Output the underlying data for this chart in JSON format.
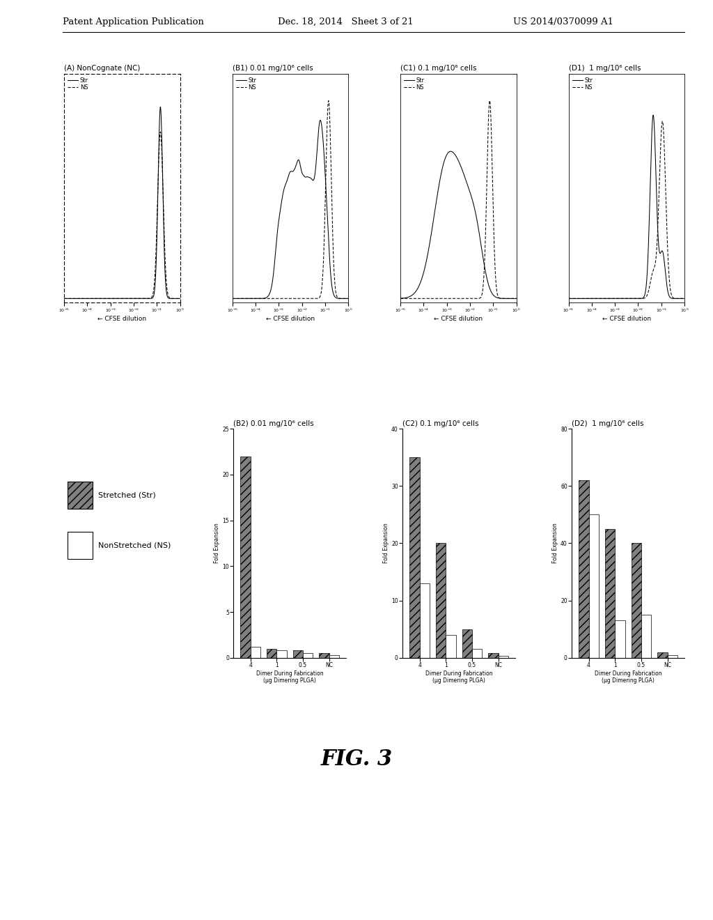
{
  "header_left": "Patent Application Publication",
  "header_date": "Dec. 18, 2014   Sheet 3 of 21",
  "header_right": "US 2014/0370099 A1",
  "fig_label": "FIG. 3",
  "panel_titles": {
    "A": "(A) NonCognate (NC)",
    "B1": "(B1) 0.01 mg/10⁶ cells",
    "C1": "(C1) 0.1 mg/10⁶ cells",
    "D1": "(D1)  1 mg/10⁶ cells",
    "B2": "(B2) 0.01 mg/10⁶ cells",
    "C2": "(C2) 0.1 mg/10⁶ cells",
    "D2": "(D2)  1 mg/10⁶ cells"
  },
  "xlabel_flow": "← CFSE dilution",
  "bar_xticks": [
    "4",
    "1",
    "0.5",
    "NC"
  ],
  "bar_ylim_B2": [
    0,
    25
  ],
  "bar_ylim_C2": [
    0,
    40
  ],
  "bar_ylim_D2": [
    0,
    80
  ],
  "bar_yticks_B2": [
    0,
    5,
    10,
    15,
    20,
    25
  ],
  "bar_yticks_C2": [
    0,
    10,
    20,
    30,
    40
  ],
  "bar_yticks_D2": [
    0,
    20,
    40,
    60,
    80
  ],
  "B2_str_vals": [
    22,
    1.0,
    0.8,
    0.5
  ],
  "B2_ns_vals": [
    1.2,
    0.8,
    0.5,
    0.3
  ],
  "C2_str_vals": [
    35,
    20,
    5,
    0.8
  ],
  "C2_ns_vals": [
    13,
    4,
    1.5,
    0.3
  ],
  "D2_str_vals": [
    62,
    45,
    40,
    2
  ],
  "D2_ns_vals": [
    50,
    13,
    15,
    1
  ],
  "legend_str_label": "Stretched (Str)",
  "legend_ns_label": "NonStretched (NS)",
  "bg_color": "#ffffff",
  "bar_color_str": "#808080",
  "bar_color_ns": "#ffffff"
}
